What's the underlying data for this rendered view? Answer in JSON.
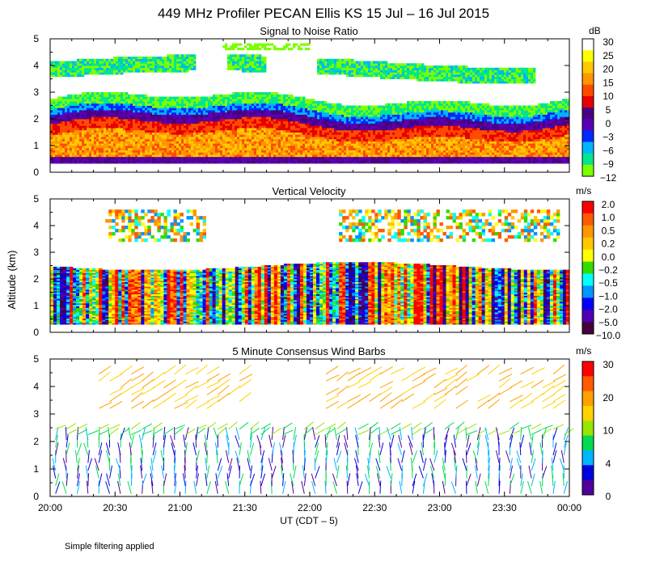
{
  "title": "449 MHz Profiler PECAN Ellis KS 15 Jul – 16 Jul 2015",
  "ylabel": "Altitude (km)",
  "xlabel": "UT  (CDT – 5)",
  "footnote": "Simple filtering applied",
  "chart_data": [
    {
      "type": "heatmap",
      "title": "Signal to Noise Ratio",
      "units": "dB",
      "x_range_ut": [
        "20:00",
        "00:00"
      ],
      "ylim": [
        0,
        5
      ],
      "y_ticks": [
        "0",
        "1",
        "2",
        "3",
        "4",
        "5"
      ],
      "colorbar": {
        "labels": [
          "30",
          "25",
          "20",
          "15",
          "10",
          "5",
          "0",
          "−3",
          "−6",
          "−9",
          "−12"
        ],
        "colors": [
          "#ffffff",
          "#ffff00",
          "#ffc800",
          "#ff9600",
          "#ff4b00",
          "#e60000",
          "#4b0082",
          "#5a00b4",
          "#0028ff",
          "#00b4ff",
          "#00e68c",
          "#7dff00"
        ]
      },
      "layers": [
        {
          "z_km": [
            0.3,
            0.6
          ],
          "value": 0
        },
        {
          "z_km": [
            0.6,
            1.8
          ],
          "value": 12
        },
        {
          "z_km": [
            1.8,
            2.2
          ],
          "value": 5
        },
        {
          "z_km": [
            2.2,
            3.0
          ],
          "value": -6
        },
        {
          "z_km": [
            3.5,
            4.5
          ],
          "value": -12
        }
      ]
    },
    {
      "type": "heatmap",
      "title": "Vertical Velocity",
      "units": "m/s",
      "x_range_ut": [
        "20:00",
        "00:00"
      ],
      "ylim": [
        0,
        5
      ],
      "y_ticks": [
        "0",
        "1",
        "2",
        "3",
        "4",
        "5"
      ],
      "colorbar": {
        "labels": [
          "2.0",
          "1.0",
          "0.5",
          "0.2",
          "0.0",
          "−0.2",
          "−0.5",
          "−1.0",
          "−2.0",
          "−5.0",
          "−10.0"
        ],
        "colors": [
          "#ff0000",
          "#ff5a00",
          "#ff9600",
          "#ffc800",
          "#ffff00",
          "#32dc00",
          "#00ffff",
          "#0096ff",
          "#0000ff",
          "#5000b4",
          "#46003c"
        ]
      },
      "layers": [
        {
          "z_km": [
            0.3,
            2.5
          ],
          "value": "mixed"
        },
        {
          "z_km": [
            3.5,
            4.5
          ],
          "value": "sparse"
        }
      ]
    },
    {
      "type": "barbs",
      "title": "5 Minute Consensus Wind Barbs",
      "units": "m/s",
      "x_range_ut": [
        "20:00",
        "00:00"
      ],
      "ylim": [
        0,
        5
      ],
      "y_ticks": [
        "0",
        "1",
        "2",
        "3",
        "4",
        "5"
      ],
      "colorbar": {
        "labels": [
          "30",
          "20",
          "10",
          "4",
          "0"
        ],
        "colors": [
          "#ff0000",
          "#ff5a00",
          "#ffa000",
          "#ffd200",
          "#96e600",
          "#00dc50",
          "#00b4ff",
          "#0000dc",
          "#50009b"
        ]
      },
      "layers": [
        {
          "z_km": [
            0.0,
            2.2
          ],
          "speed": 6
        },
        {
          "z_km": [
            2.2,
            2.6
          ],
          "speed": 12
        },
        {
          "z_km": [
            3.2,
            4.5
          ],
          "speed": 18
        }
      ]
    }
  ],
  "x_ticks": [
    "20:00",
    "20:30",
    "21:00",
    "21:30",
    "22:00",
    "22:30",
    "23:00",
    "23:30",
    "00:00"
  ]
}
